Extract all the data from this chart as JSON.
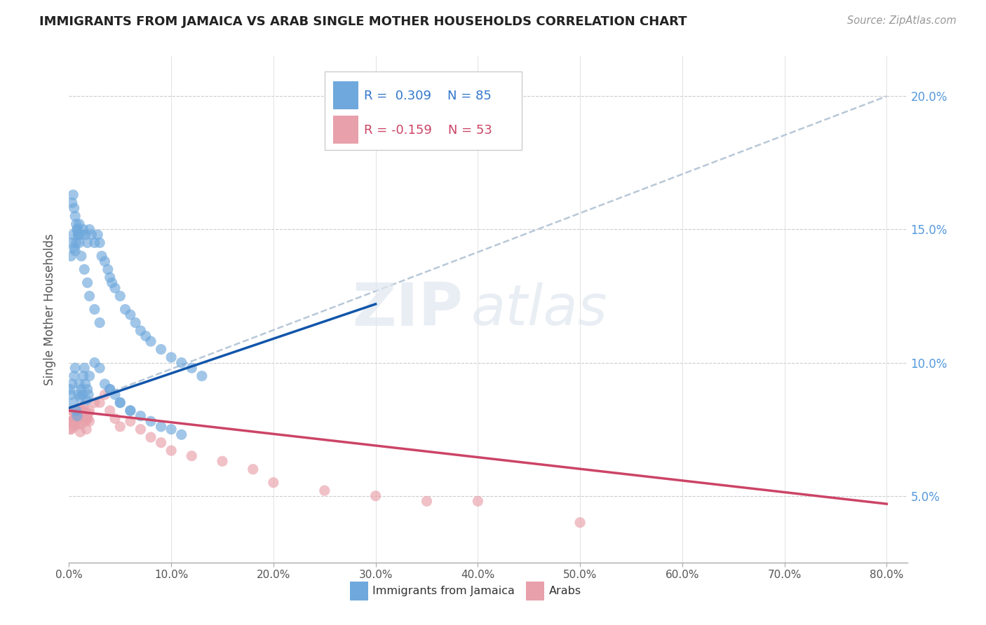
{
  "title": "IMMIGRANTS FROM JAMAICA VS ARAB SINGLE MOTHER HOUSEHOLDS CORRELATION CHART",
  "source": "Source: ZipAtlas.com",
  "ylabel": "Single Mother Households",
  "legend_entries": [
    {
      "label": "Immigrants from Jamaica",
      "color": "#6fa8dc",
      "R": "0.309",
      "N": "85"
    },
    {
      "label": "Arabs",
      "color": "#e8a0aa",
      "R": "-0.159",
      "N": "53"
    }
  ],
  "yticks": [
    "5.0%",
    "10.0%",
    "15.0%",
    "20.0%"
  ],
  "ytick_vals": [
    0.05,
    0.1,
    0.15,
    0.2
  ],
  "xtick_vals": [
    0.0,
    0.1,
    0.2,
    0.3,
    0.4,
    0.5,
    0.6,
    0.7,
    0.8
  ],
  "xtick_labels": [
    "0.0%",
    "10.0%",
    "20.0%",
    "30.0%",
    "40.0%",
    "50.0%",
    "60.0%",
    "70.0%",
    "80.0%"
  ],
  "xlim": [
    0.0,
    0.82
  ],
  "ylim": [
    0.025,
    0.215
  ],
  "watermark_zip": "ZIP",
  "watermark_atlas": "atlas",
  "blue_scatter_x": [
    0.001,
    0.002,
    0.003,
    0.004,
    0.005,
    0.006,
    0.007,
    0.008,
    0.009,
    0.01,
    0.011,
    0.012,
    0.013,
    0.014,
    0.015,
    0.016,
    0.017,
    0.018,
    0.019,
    0.02,
    0.002,
    0.003,
    0.004,
    0.005,
    0.006,
    0.007,
    0.008,
    0.009,
    0.01,
    0.012,
    0.014,
    0.016,
    0.018,
    0.02,
    0.022,
    0.025,
    0.028,
    0.03,
    0.032,
    0.035,
    0.038,
    0.04,
    0.042,
    0.045,
    0.05,
    0.055,
    0.06,
    0.065,
    0.07,
    0.075,
    0.08,
    0.09,
    0.1,
    0.11,
    0.12,
    0.13,
    0.003,
    0.004,
    0.005,
    0.006,
    0.007,
    0.008,
    0.009,
    0.01,
    0.012,
    0.015,
    0.018,
    0.02,
    0.025,
    0.03,
    0.04,
    0.05,
    0.06,
    0.07,
    0.08,
    0.09,
    0.1,
    0.11,
    0.025,
    0.03,
    0.035,
    0.04,
    0.045,
    0.05,
    0.06
  ],
  "blue_scatter_y": [
    0.09,
    0.088,
    0.092,
    0.085,
    0.095,
    0.098,
    0.082,
    0.08,
    0.088,
    0.092,
    0.087,
    0.09,
    0.088,
    0.095,
    0.098,
    0.092,
    0.086,
    0.09,
    0.088,
    0.095,
    0.14,
    0.145,
    0.148,
    0.143,
    0.142,
    0.145,
    0.15,
    0.148,
    0.152,
    0.148,
    0.15,
    0.148,
    0.145,
    0.15,
    0.148,
    0.145,
    0.148,
    0.145,
    0.14,
    0.138,
    0.135,
    0.132,
    0.13,
    0.128,
    0.125,
    0.12,
    0.118,
    0.115,
    0.112,
    0.11,
    0.108,
    0.105,
    0.102,
    0.1,
    0.098,
    0.095,
    0.16,
    0.163,
    0.158,
    0.155,
    0.152,
    0.15,
    0.148,
    0.145,
    0.14,
    0.135,
    0.13,
    0.125,
    0.12,
    0.115,
    0.09,
    0.085,
    0.082,
    0.08,
    0.078,
    0.076,
    0.075,
    0.073,
    0.1,
    0.098,
    0.092,
    0.09,
    0.088,
    0.085,
    0.082
  ],
  "pink_scatter_x": [
    0.001,
    0.002,
    0.003,
    0.004,
    0.005,
    0.006,
    0.007,
    0.008,
    0.009,
    0.01,
    0.011,
    0.012,
    0.013,
    0.014,
    0.015,
    0.016,
    0.017,
    0.018,
    0.019,
    0.02,
    0.002,
    0.003,
    0.004,
    0.005,
    0.006,
    0.007,
    0.008,
    0.009,
    0.01,
    0.012,
    0.015,
    0.018,
    0.02,
    0.025,
    0.03,
    0.035,
    0.04,
    0.045,
    0.05,
    0.06,
    0.07,
    0.08,
    0.09,
    0.1,
    0.12,
    0.15,
    0.18,
    0.2,
    0.25,
    0.3,
    0.35,
    0.4,
    0.5
  ],
  "pink_scatter_y": [
    0.075,
    0.078,
    0.082,
    0.078,
    0.076,
    0.08,
    0.082,
    0.079,
    0.077,
    0.08,
    0.074,
    0.077,
    0.08,
    0.082,
    0.084,
    0.078,
    0.075,
    0.079,
    0.081,
    0.078,
    0.075,
    0.078,
    0.082,
    0.079,
    0.077,
    0.08,
    0.082,
    0.08,
    0.083,
    0.082,
    0.08,
    0.079,
    0.082,
    0.085,
    0.085,
    0.088,
    0.082,
    0.079,
    0.076,
    0.078,
    0.075,
    0.072,
    0.07,
    0.067,
    0.065,
    0.063,
    0.06,
    0.055,
    0.052,
    0.05,
    0.048,
    0.048,
    0.04
  ],
  "blue_line_x": [
    0.0,
    0.3
  ],
  "blue_line_y": [
    0.083,
    0.122
  ],
  "pink_line_x": [
    0.0,
    0.8
  ],
  "pink_line_y": [
    0.082,
    0.047
  ],
  "dashed_line_x": [
    0.0,
    0.8
  ],
  "dashed_line_y": [
    0.083,
    0.2
  ],
  "blue_color": "#6fa8dc",
  "pink_color": "#e8a0aa",
  "dashed_color": "#b8c8d8",
  "blue_line_color": "#1155aa",
  "pink_line_color": "#cc4466"
}
